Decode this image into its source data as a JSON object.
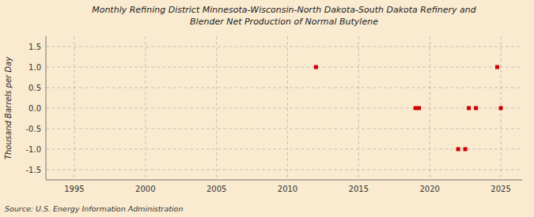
{
  "chart_data": {
    "type": "scatter",
    "title": "Monthly Refining District Minnesota-Wisconsin-North Dakota-South Dakota Refinery and\nBlender Net Production of Normal Butylene",
    "y_label": "Thousand Barrels per Day",
    "source": "Source: U.S. Energy Information Administration",
    "x": [
      2012.0,
      2019.0,
      2019.25,
      2022.0,
      2022.5,
      2022.75,
      2023.25,
      2024.75,
      2025.0
    ],
    "values": [
      1.0,
      0.0,
      0.0,
      -1.0,
      -1.0,
      0.0,
      0.0,
      1.0,
      0.0
    ],
    "color": "#cc0000",
    "marker": "square",
    "xlim": [
      1993.0,
      2026.5
    ],
    "ylim": [
      -1.75,
      1.75
    ],
    "xticks": [
      1995,
      2000,
      2005,
      2010,
      2015,
      2020,
      2025
    ],
    "yticks": [
      -1.5,
      {
        "value": -1.0,
        "label": "-1.0"
      },
      -0.5,
      {
        "value": 0.0,
        "label": "0.0"
      },
      0.5,
      {
        "value": 1.0,
        "label": "1.0"
      },
      1.5
    ],
    "grid": true
  }
}
